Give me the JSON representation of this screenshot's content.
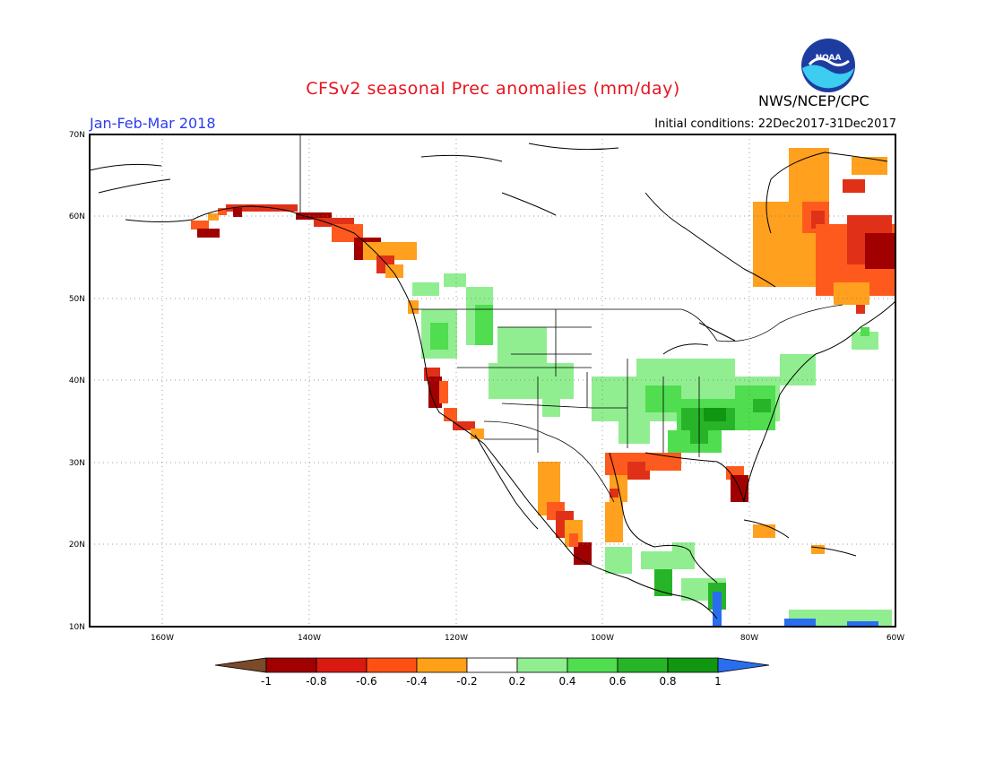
{
  "header": {
    "title": "CFSv2 seasonal Prec anomalies (mm/day)",
    "period": "Jan-Feb-Mar 2018",
    "initial_conditions": "Initial conditions: 22Dec2017-31Dec2017",
    "agency": "NWS/NCEP/CPC",
    "logo_text": "NOAA"
  },
  "axes": {
    "lat_labels": [
      "70N",
      "60N",
      "50N",
      "40N",
      "30N",
      "20N",
      "10N"
    ],
    "lon_labels": [
      "160W",
      "140W",
      "120W",
      "100W",
      "80W",
      "60W"
    ]
  },
  "colorbar": {
    "labels": [
      "-1",
      "-0.8",
      "-0.6",
      "-0.4",
      "-0.2",
      "0.2",
      "0.4",
      "0.6",
      "0.8",
      "1"
    ],
    "colors": [
      "#7a4a2a",
      "#a00000",
      "#d81a10",
      "#ff5014",
      "#ffa018",
      "#ffffff",
      "#90ee90",
      "#50dd50",
      "#28b428",
      "#109610",
      "#2a6ef0"
    ]
  },
  "legend_colors": {
    "dry_strong": "#a00000",
    "dry": "#e03018",
    "dry_mod": "#ff5a1e",
    "dry_weak": "#ffa01e",
    "wet_weak": "#90ee90",
    "wet_mod": "#50dd50",
    "wet": "#28b428",
    "wet_strong": "#109610",
    "extreme_wet": "#2a6ef0"
  }
}
